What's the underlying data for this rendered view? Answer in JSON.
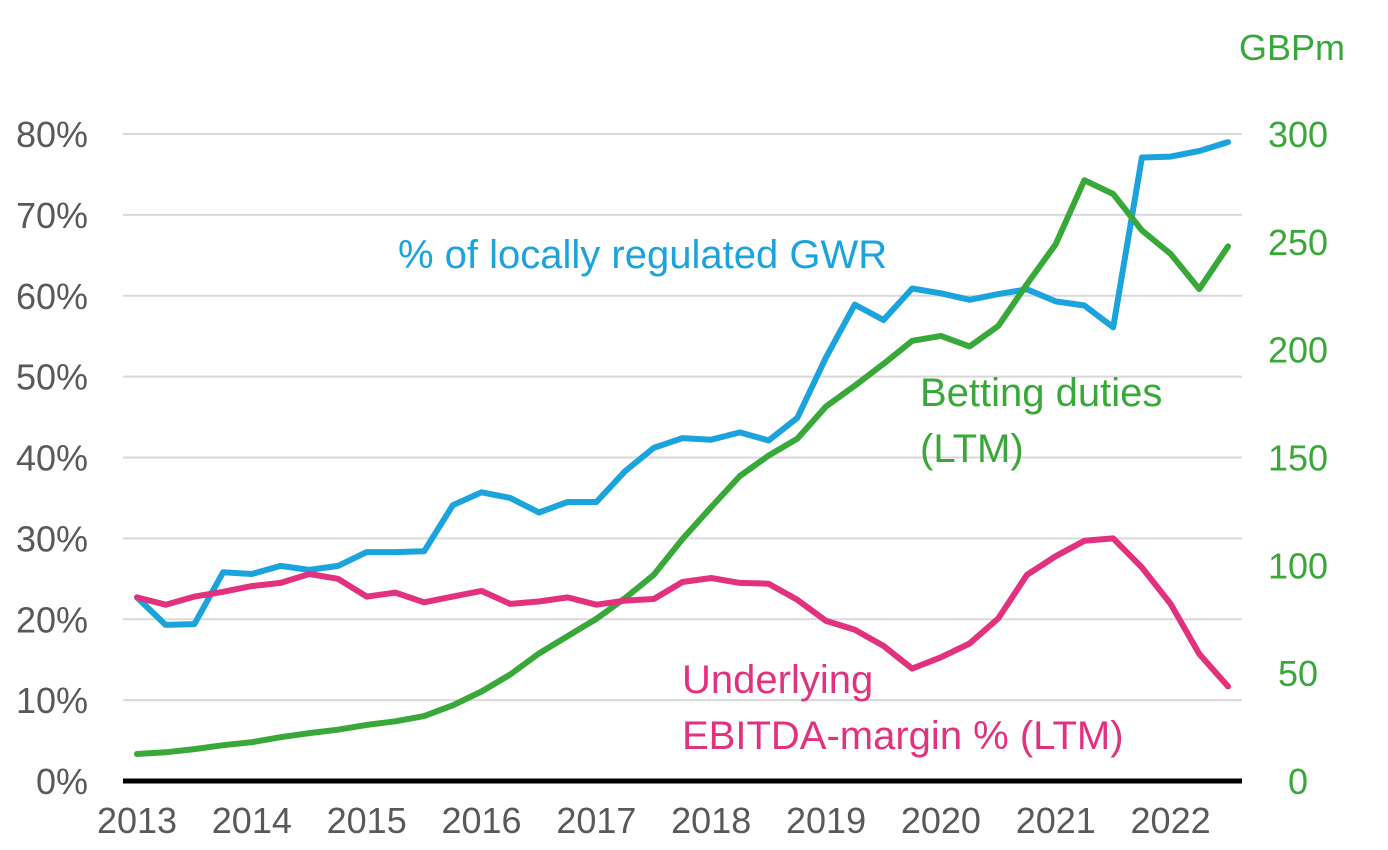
{
  "chart_data": {
    "type": "line",
    "x_ticks": [
      "2013",
      "2014",
      "2015",
      "2016",
      "2017",
      "2018",
      "2019",
      "2020",
      "2021",
      "2022"
    ],
    "x_range": [
      2013,
      2022.8
    ],
    "y_left": {
      "range": [
        0,
        80
      ],
      "ticks": [
        "0%",
        "10%",
        "20%",
        "30%",
        "40%",
        "50%",
        "60%",
        "70%",
        "80%"
      ]
    },
    "y_right": {
      "unit": "GBPm",
      "range": [
        0,
        300
      ],
      "ticks": [
        "0",
        "50",
        "100",
        "150",
        "200",
        "250",
        "300"
      ]
    },
    "grid": true,
    "colors": {
      "gwr": "#1aa3dc",
      "duties": "#38a838",
      "ebitda": "#e2317e",
      "right_axis": "#38a838",
      "left_axis": "#595959",
      "grid": "#d9d9d9",
      "baseline": "#000000"
    },
    "annotations": {
      "gwr": "% of locally regulated GWR",
      "duties_1": "Betting duties",
      "duties_2": "(LTM)",
      "ebitda_1": "Underlying",
      "ebitda_2": "EBITDA-margin % (LTM)"
    },
    "series": [
      {
        "key": "gwr",
        "axis": "left",
        "x": [
          2013,
          2013.25,
          2013.5,
          2013.75,
          2014,
          2014.25,
          2014.5,
          2014.75,
          2015,
          2015.25,
          2015.5,
          2015.75,
          2016,
          2016.25,
          2016.5,
          2016.75,
          2017,
          2017.25,
          2017.5,
          2017.75,
          2018,
          2018.25,
          2018.5,
          2018.75,
          2019,
          2019.25,
          2019.5,
          2019.75,
          2020,
          2020.25,
          2020.5,
          2020.75,
          2021,
          2021.25,
          2021.5,
          2021.75,
          2022,
          2022.25,
          2022.5
        ],
        "y": [
          22.7,
          19.3,
          19.4,
          25.8,
          25.6,
          26.6,
          26.1,
          26.6,
          28.3,
          28.3,
          28.4,
          34.1,
          35.7,
          35.0,
          33.2,
          34.5,
          34.5,
          38.3,
          41.2,
          42.4,
          42.2,
          43.1,
          42.1,
          44.9,
          52.4,
          58.9,
          57.0,
          60.9,
          60.3,
          59.5,
          60.2,
          60.8,
          59.3,
          58.8,
          56.1,
          77.1,
          77.2,
          77.9,
          79.0
        ]
      },
      {
        "key": "duties",
        "axis": "right",
        "x": [
          2013,
          2013.25,
          2013.5,
          2013.75,
          2014,
          2014.25,
          2014.5,
          2014.75,
          2015,
          2015.25,
          2015.5,
          2015.75,
          2016,
          2016.25,
          2016.5,
          2016.75,
          2017,
          2017.25,
          2017.5,
          2017.75,
          2018,
          2018.25,
          2018.5,
          2018.75,
          2019,
          2019.25,
          2019.5,
          2019.75,
          2020,
          2020.25,
          2020.5,
          2020.75,
          2021,
          2021.25,
          2021.5,
          2021.75,
          2022,
          2022.25,
          2022.5
        ],
        "y": [
          12.5,
          13.3,
          14.8,
          16.6,
          18.0,
          20.3,
          22.2,
          23.8,
          26.0,
          27.7,
          30.1,
          35.1,
          41.5,
          49.4,
          59.1,
          67.2,
          75.2,
          84.8,
          95.6,
          112.2,
          127.0,
          141.4,
          150.9,
          158.7,
          173.7,
          183.3,
          193.4,
          204.1,
          206.4,
          201.5,
          211.0,
          230.4,
          248.9,
          278.6,
          272.2,
          255.3,
          244.4,
          228.1,
          247.9
        ]
      },
      {
        "key": "ebitda",
        "axis": "left",
        "x": [
          2013,
          2013.25,
          2013.5,
          2013.75,
          2014,
          2014.25,
          2014.5,
          2014.75,
          2015,
          2015.25,
          2015.5,
          2015.75,
          2016,
          2016.25,
          2016.5,
          2016.75,
          2017,
          2017.25,
          2017.5,
          2017.75,
          2018,
          2018.25,
          2018.5,
          2018.75,
          2019,
          2019.25,
          2019.5,
          2019.75,
          2020,
          2020.25,
          2020.5,
          2020.75,
          2021,
          2021.25,
          2021.5,
          2021.75,
          2022,
          2022.25,
          2022.5
        ],
        "y": [
          22.7,
          21.8,
          22.8,
          23.4,
          24.1,
          24.5,
          25.6,
          25.0,
          22.8,
          23.3,
          22.1,
          22.8,
          23.5,
          21.9,
          22.2,
          22.7,
          21.8,
          22.3,
          22.5,
          24.6,
          25.1,
          24.5,
          24.4,
          22.4,
          19.8,
          18.7,
          16.7,
          13.9,
          15.3,
          17.0,
          20.1,
          25.5,
          27.8,
          29.7,
          30.0,
          26.4,
          21.9,
          15.7,
          11.7
        ]
      }
    ]
  }
}
